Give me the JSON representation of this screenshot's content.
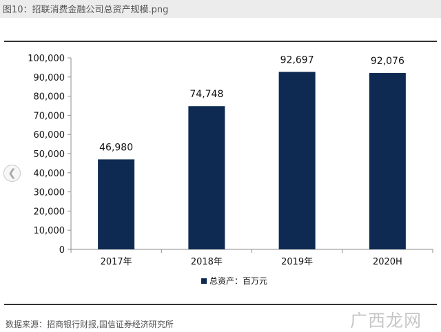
{
  "page": {
    "caption": "图10：招联消费金融公司总资产规模.png",
    "source": "数据来源：招商银行财报,国信证券经济研究所",
    "watermark": "广西龙网",
    "prev_icon": "chevron-left-icon"
  },
  "colors": {
    "bar": "#0e2a52",
    "axis": "#8c8c8c"
  },
  "chart_data": {
    "type": "bar",
    "categories": [
      "2017年",
      "2018年",
      "2019年",
      "2020H"
    ],
    "series": [
      {
        "name": "总资产：百万元",
        "values": [
          46980,
          74748,
          92697,
          92076
        ]
      }
    ],
    "data_labels": [
      "46,980",
      "74,748",
      "92,697",
      "92,076"
    ],
    "yticks": [
      0,
      10000,
      20000,
      30000,
      40000,
      50000,
      60000,
      70000,
      80000,
      90000,
      100000
    ],
    "ytick_labels": [
      "0",
      "10,000",
      "20,000",
      "30,000",
      "40,000",
      "50,000",
      "60,000",
      "70,000",
      "80,000",
      "90,000",
      "100,000"
    ],
    "ylim": [
      0,
      100000
    ],
    "grid": false,
    "legend_position": "bottom"
  }
}
